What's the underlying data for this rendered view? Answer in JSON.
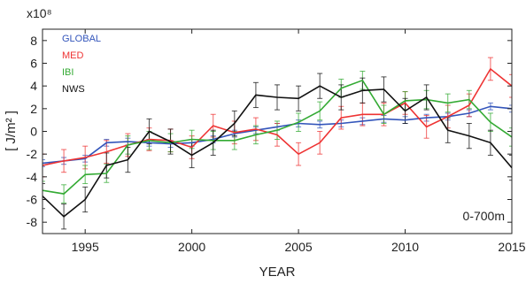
{
  "chart_data": {
    "type": "line",
    "xlabel": "YEAR",
    "ylabel": "[ J/m² ]",
    "exponent_label": "x10⁸",
    "annotation": "0-700m",
    "xlim": [
      1993,
      2015
    ],
    "ylim": [
      -9,
      9
    ],
    "x_ticks": [
      1995,
      2000,
      2005,
      2010,
      2015
    ],
    "y_ticks": [
      -8,
      -6,
      -4,
      -2,
      0,
      2,
      4,
      6,
      8
    ],
    "grid": false,
    "legend_position": "top-left",
    "x": [
      1993,
      1994,
      1995,
      1996,
      1997,
      1998,
      1999,
      2000,
      2001,
      2002,
      2003,
      2004,
      2005,
      2006,
      2007,
      2008,
      2009,
      2010,
      2011,
      2012,
      2013,
      2014,
      2015
    ],
    "series": [
      {
        "name": "GLOBAL",
        "color": "#3355bb",
        "values": [
          -2.8,
          -2.6,
          -2.4,
          -1.0,
          -0.9,
          -1.0,
          -1.1,
          -1.0,
          -0.7,
          -0.2,
          0.1,
          0.4,
          0.7,
          0.6,
          0.7,
          0.9,
          1.1,
          1.0,
          1.2,
          1.3,
          1.6,
          2.2,
          2.0
        ],
        "errors": [
          0.3,
          0.3,
          0.3,
          0.3,
          0.3,
          0.3,
          0.3,
          0.3,
          0.3,
          0.3,
          0.3,
          0.3,
          0.3,
          0.3,
          0.3,
          0.3,
          0.3,
          0.3,
          0.3,
          0.3,
          0.3,
          0.3,
          0.3
        ]
      },
      {
        "name": "MED",
        "color": "#ee3333",
        "values": [
          -3.0,
          -2.6,
          -2.3,
          -1.8,
          -1.2,
          -0.7,
          -0.8,
          -1.4,
          0.5,
          -0.1,
          0.2,
          -0.3,
          -2.0,
          -1.0,
          1.2,
          1.5,
          1.5,
          2.5,
          0.4,
          1.3,
          2.3,
          5.5,
          4.0
        ],
        "errors": [
          1.0,
          1.0,
          1.0,
          1.0,
          1.0,
          1.0,
          1.0,
          1.0,
          1.0,
          1.0,
          1.0,
          1.0,
          1.0,
          1.0,
          1.0,
          1.0,
          1.0,
          1.0,
          1.0,
          1.0,
          1.0,
          1.0,
          1.0
        ]
      },
      {
        "name": "IBI",
        "color": "#33aa33",
        "values": [
          -5.2,
          -5.5,
          -3.8,
          -3.7,
          -1.2,
          -0.8,
          -1.0,
          -0.7,
          -0.8,
          -0.8,
          -0.3,
          0.1,
          0.8,
          1.8,
          3.8,
          4.5,
          1.5,
          2.7,
          2.8,
          2.5,
          2.8,
          0.8,
          -0.5
        ],
        "errors": [
          0.8,
          0.8,
          0.8,
          0.8,
          0.8,
          0.8,
          0.8,
          0.8,
          0.8,
          0.8,
          0.8,
          0.8,
          0.8,
          0.8,
          0.8,
          0.8,
          0.8,
          0.8,
          0.8,
          0.8,
          0.8,
          0.8,
          0.8
        ]
      },
      {
        "name": "NWS",
        "color": "#111111",
        "values": [
          -5.7,
          -7.5,
          -6.0,
          -3.0,
          -2.5,
          0.0,
          -0.9,
          -2.1,
          -1.0,
          0.7,
          3.2,
          3.0,
          2.9,
          4.0,
          3.0,
          3.6,
          3.7,
          1.8,
          3.0,
          0.1,
          -0.4,
          -1.0,
          -3.2
        ],
        "errors": [
          1.1,
          1.1,
          1.1,
          1.1,
          1.1,
          1.1,
          1.1,
          1.1,
          1.1,
          1.1,
          1.1,
          1.1,
          1.1,
          1.1,
          1.1,
          1.1,
          1.1,
          1.1,
          1.1,
          1.1,
          1.1,
          1.1,
          1.1
        ]
      }
    ]
  }
}
